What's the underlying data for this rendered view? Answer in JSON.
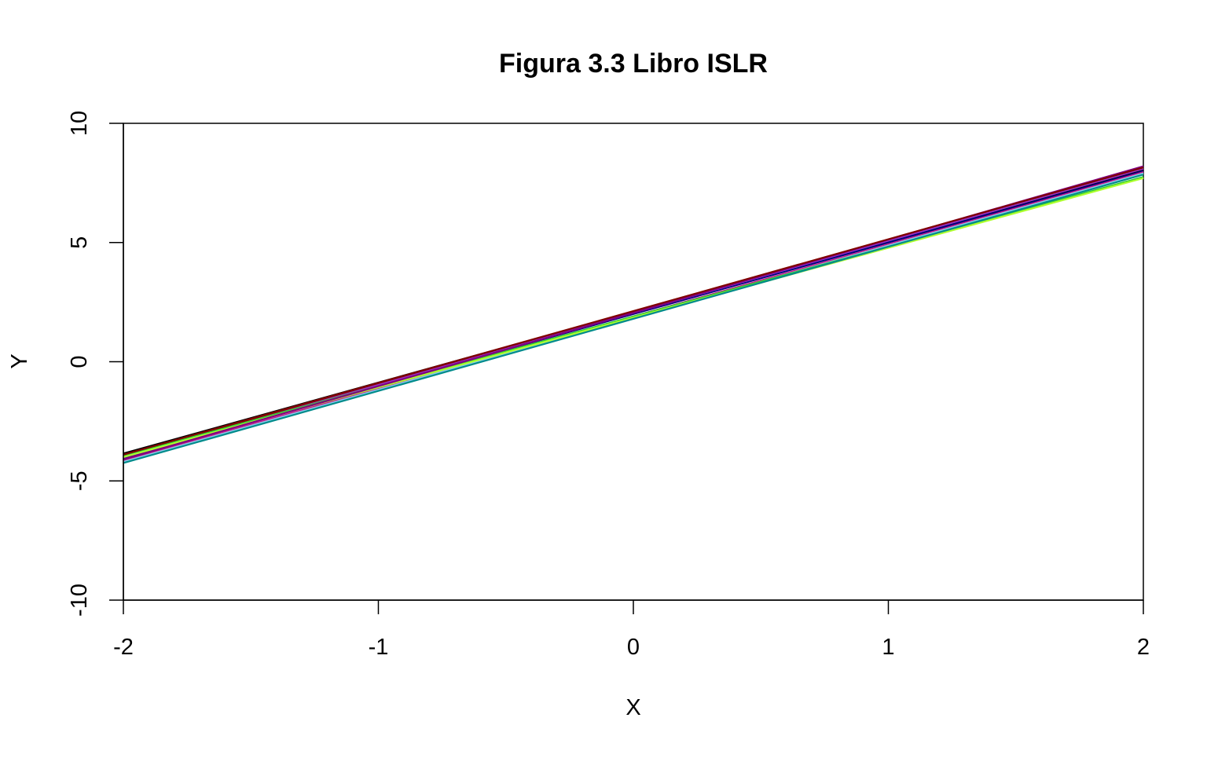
{
  "chart_data": {
    "type": "line",
    "title": "Figura 3.3 Libro ISLR",
    "xlabel": "X",
    "ylabel": "Y",
    "xlim": [
      -2,
      2
    ],
    "ylim": [
      -10,
      10
    ],
    "x_ticks": [
      -2,
      -1,
      0,
      1,
      2
    ],
    "x_tick_labels": [
      "-2",
      "-1",
      "0",
      "1",
      "2"
    ],
    "y_ticks": [
      -10,
      -5,
      0,
      5,
      10
    ],
    "y_tick_labels": [
      "-10",
      "-5",
      "0",
      "5",
      "10"
    ],
    "grid": false,
    "legend": false,
    "x": [
      -2,
      2
    ],
    "series": [
      {
        "color": "#000000",
        "values": [
          -3.85,
          8.05
        ]
      },
      {
        "color": "#000000",
        "values": [
          -3.9,
          8.0
        ]
      },
      {
        "color": "#8B0000",
        "values": [
          -3.95,
          8.1
        ]
      },
      {
        "color": "#000080",
        "values": [
          -4.0,
          8.0
        ]
      },
      {
        "color": "#4B0082",
        "values": [
          -4.05,
          8.15
        ]
      },
      {
        "color": "#9932CC",
        "values": [
          -4.0,
          8.1
        ]
      },
      {
        "color": "#C71585",
        "values": [
          -4.15,
          7.95
        ]
      },
      {
        "color": "#87CEEB",
        "values": [
          -4.2,
          7.9
        ]
      },
      {
        "color": "#32CD32",
        "values": [
          -3.95,
          7.75
        ]
      },
      {
        "color": "#ADFF2F",
        "values": [
          -4.0,
          7.7
        ]
      },
      {
        "color": "#008B8B",
        "values": [
          -4.25,
          7.85
        ]
      },
      {
        "color": "#800080",
        "values": [
          -4.1,
          8.2
        ]
      },
      {
        "color": "#800000",
        "values": [
          -3.9,
          8.15
        ]
      }
    ]
  }
}
